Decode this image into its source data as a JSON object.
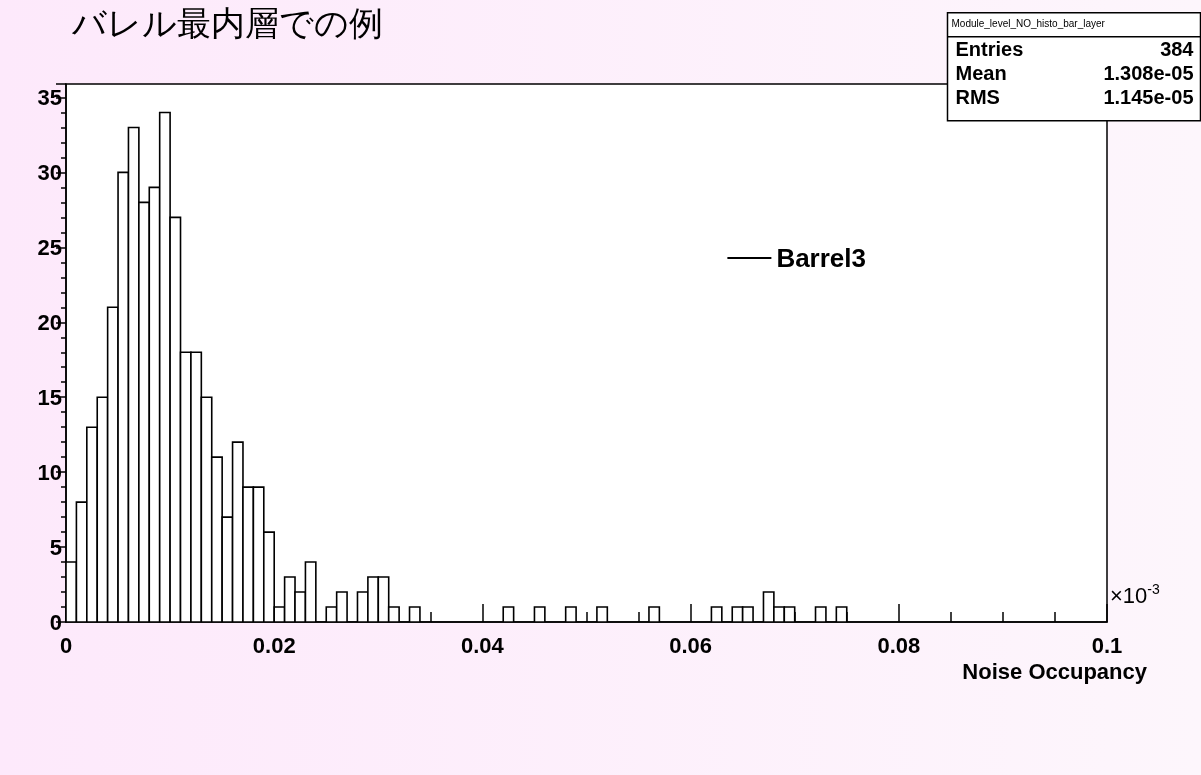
{
  "chart_data": {
    "type": "histogram",
    "title": "バレル最内層での例",
    "xlabel": "Noise Occupancy",
    "annotations": [
      "×10$^{-3}$",
      "Module_level_NO_histo_bar_layer",
      "Entries 384",
      "Mean 1.308e-05",
      "RMS 1.145e-05"
    ],
    "bins": [
      0,
      0.001,
      0.002,
      0.003,
      0.004,
      0.005,
      0.006,
      0.007,
      0.008,
      0.009,
      0.01,
      0.011,
      0.012,
      0.013,
      0.014,
      0.015,
      0.016,
      0.017,
      0.018,
      0.019,
      0.02,
      0.021,
      0.022,
      0.023,
      0.024,
      0.025,
      0.026,
      0.027,
      0.028,
      0.029,
      0.03,
      0.031,
      0.032,
      0.033,
      0.034,
      0.035,
      0.036,
      0.037,
      0.038,
      0.039,
      0.04,
      0.041,
      0.042,
      0.043,
      0.044,
      0.045,
      0.046,
      0.047,
      0.048,
      0.049,
      0.05,
      0.051,
      0.052,
      0.053,
      0.054,
      0.055,
      0.056,
      0.057,
      0.058,
      0.059,
      0.06,
      0.061,
      0.062,
      0.063,
      0.064,
      0.065,
      0.066,
      0.067,
      0.068,
      0.069,
      0.07,
      0.071,
      0.072,
      0.073,
      0.074,
      0.075,
      0.076,
      0.077,
      0.078,
      0.079,
      0.08,
      0.081,
      0.082,
      0.083,
      0.084,
      0.085,
      0.086,
      0.087,
      0.088,
      0.089,
      0.09,
      0.091,
      0.092,
      0.093,
      0.094,
      0.095,
      0.096,
      0.097,
      0.098,
      0.099,
      0.1
    ],
    "series": [
      {
        "name": "Barrel3",
        "color": "#000000",
        "values": [
          4,
          8,
          13,
          15,
          21,
          30,
          33,
          28,
          29,
          34,
          27,
          18,
          18,
          15,
          11,
          7,
          12,
          9,
          9,
          6,
          1,
          3,
          2,
          4,
          0,
          1,
          2,
          0,
          2,
          3,
          3,
          1,
          0,
          1,
          0,
          0,
          0,
          0,
          0,
          0,
          0,
          0,
          1,
          0,
          0,
          1,
          0,
          0,
          1,
          0,
          0,
          1,
          0,
          0,
          0,
          0,
          1,
          0,
          0,
          0,
          0,
          0,
          1,
          0,
          1,
          1,
          0,
          2,
          1,
          1,
          0,
          0,
          1,
          0,
          1,
          0,
          0,
          0,
          0,
          0,
          0,
          0,
          0,
          0,
          0,
          0,
          0,
          0,
          0,
          0,
          0,
          0,
          0,
          0,
          0,
          0,
          0,
          0,
          0,
          0
        ]
      }
    ],
    "legend": "top right",
    "xlim": [
      0,
      0.1
    ],
    "xticks": [
      0,
      0.02,
      0.04,
      0.06,
      0.08,
      0.1
    ],
    "ylim": [
      0,
      35.9
    ],
    "yticks": [
      0,
      5,
      10,
      15,
      20,
      25,
      30,
      35
    ]
  }
}
